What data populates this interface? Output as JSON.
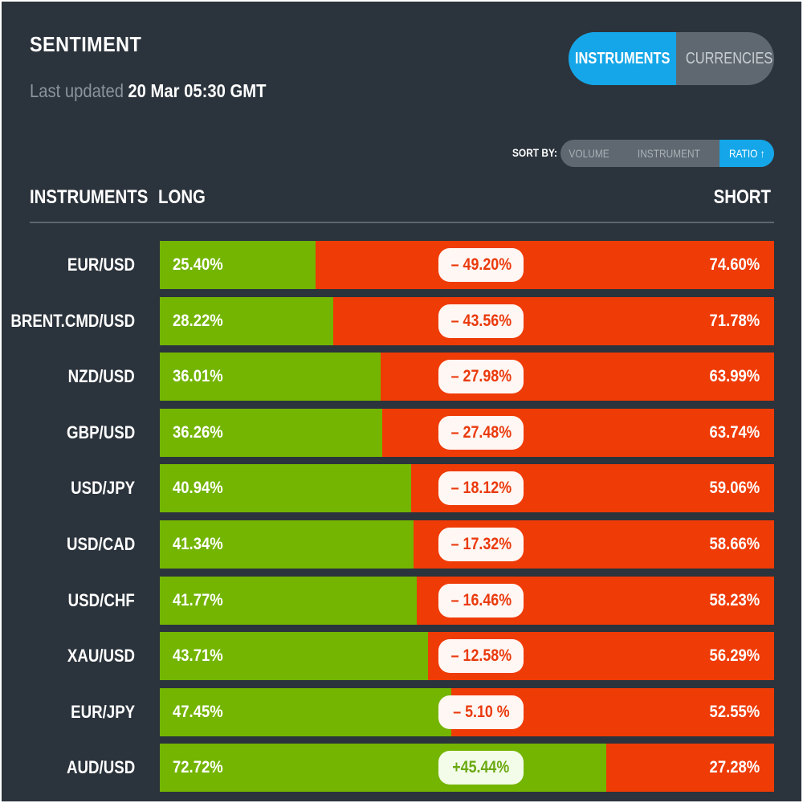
{
  "header": {
    "title": "SENTIMENT",
    "updated_label": "Last updated",
    "updated_value": "20 Mar 05:30 GMT"
  },
  "view_toggle": {
    "instruments_label": "INSTRUMENTS",
    "currencies_label": "CURRENCIES",
    "active": "INSTRUMENTS"
  },
  "sort": {
    "label": "SORT BY:",
    "options": [
      "VOLUME",
      "INSTRUMENT",
      "RATIO ↑"
    ],
    "active": "RATIO ↑"
  },
  "table": {
    "col_instruments": "INSTRUMENTS",
    "col_long": "LONG",
    "col_short": "SHORT",
    "rows": [
      {
        "name": "EUR/USD",
        "long": "25.40%",
        "short": "74.60%",
        "diff": "– 49.20%",
        "long_pct": 25.4
      },
      {
        "name": "BRENT.CMD/USD",
        "long": "28.22%",
        "short": "71.78%",
        "diff": "– 43.56%",
        "long_pct": 28.22
      },
      {
        "name": "NZD/USD",
        "long": "36.01%",
        "short": "63.99%",
        "diff": "– 27.98%",
        "long_pct": 36.01
      },
      {
        "name": "GBP/USD",
        "long": "36.26%",
        "short": "63.74%",
        "diff": "– 27.48%",
        "long_pct": 36.26
      },
      {
        "name": "USD/JPY",
        "long": "40.94%",
        "short": "59.06%",
        "diff": "– 18.12%",
        "long_pct": 40.94
      },
      {
        "name": "USD/CAD",
        "long": "41.34%",
        "short": "58.66%",
        "diff": "– 17.32%",
        "long_pct": 41.34
      },
      {
        "name": "USD/CHF",
        "long": "41.77%",
        "short": "58.23%",
        "diff": "– 16.46%",
        "long_pct": 41.77
      },
      {
        "name": "XAU/USD",
        "long": "43.71%",
        "short": "56.29%",
        "diff": "– 12.58%",
        "long_pct": 43.71
      },
      {
        "name": "EUR/JPY",
        "long": "47.45%",
        "short": "52.55%",
        "diff": "– 5.10 %",
        "long_pct": 47.45
      },
      {
        "name": "AUD/USD",
        "long": "72.72%",
        "short": "27.28%",
        "diff": "+45.44%",
        "long_pct": 72.72
      }
    ]
  },
  "colors": {
    "long": "#73b500",
    "short": "#ef3b06",
    "accent": "#14a6e8",
    "background": "#2b333c"
  }
}
